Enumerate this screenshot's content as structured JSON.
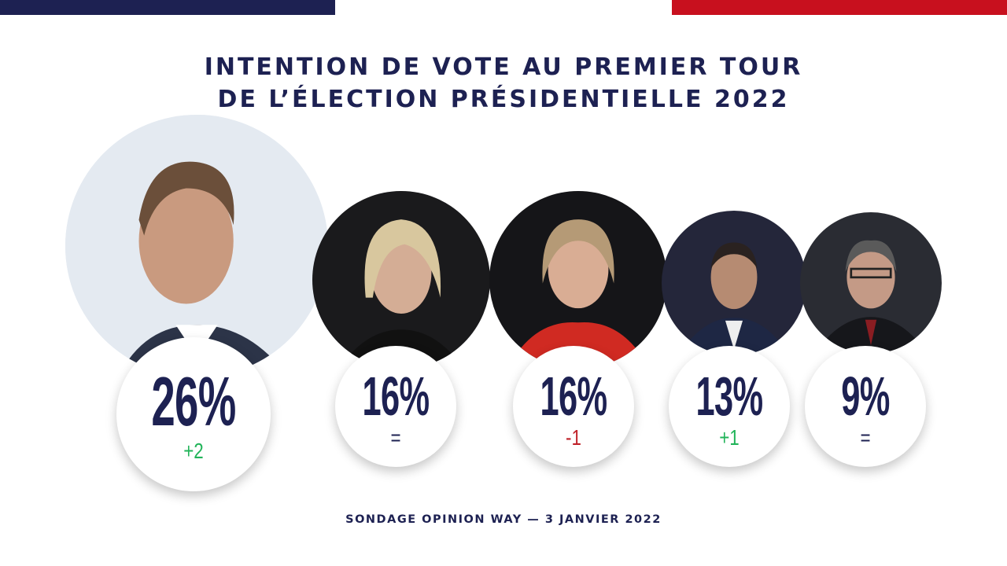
{
  "colors": {
    "navy": "#1d2152",
    "red": "#c8101e",
    "green": "#22b45a",
    "change_red": "#c0222a"
  },
  "title": {
    "line1": "INTENTION DE VOTE AU PREMIER TOUR",
    "line2": "DE L’ÉLECTION PRÉSIDENTIELLE 2022"
  },
  "footer": "SONDAGE OPINION WAY — 3 JANVIER 2022",
  "chart_data": {
    "type": "table",
    "title": "INTENTION DE VOTE AU PREMIER TOUR DE L’ÉLECTION PRÉSIDENTIELLE 2022",
    "values": [
      26,
      16,
      16,
      13,
      9
    ],
    "labels": [
      "26%",
      "16%",
      "16%",
      "13%",
      "9%"
    ],
    "changes": [
      "+2",
      "=",
      "-1",
      "+1",
      "="
    ]
  }
}
